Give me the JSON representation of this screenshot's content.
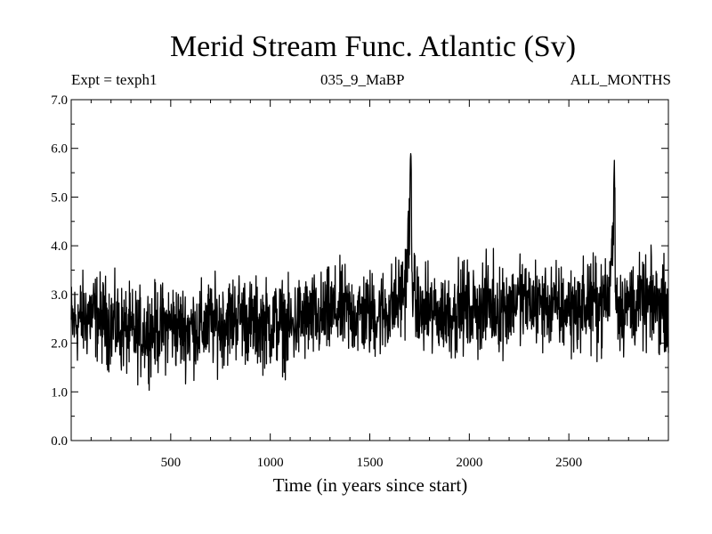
{
  "chart_data": {
    "type": "line",
    "title": "Merid Stream Func. Atlantic (Sv)",
    "left_label": "Expt = texph1",
    "center_label": "035_9_MaBP",
    "right_label": "ALL_MONTHS",
    "xlabel": "Time (in years since start)",
    "ylabel": "",
    "xlim": [
      0,
      3000
    ],
    "ylim": [
      0.0,
      7.0
    ],
    "x_ticks": [
      500,
      1000,
      1500,
      2000,
      2500
    ],
    "y_ticks": [
      "0.0",
      "1.0",
      "2.0",
      "3.0",
      "4.0",
      "5.0",
      "6.0",
      "7.0"
    ],
    "grid": false,
    "line_color": "#000000",
    "series": [
      {
        "x": [
          0,
          50,
          100,
          150,
          200,
          250,
          300,
          350,
          400,
          450,
          500,
          550,
          600,
          650,
          700,
          750,
          800,
          850,
          900,
          950,
          1000,
          1050,
          1100,
          1150,
          1200,
          1250,
          1300,
          1350,
          1400,
          1450,
          1500,
          1550,
          1600,
          1650,
          1680,
          1700,
          1720,
          1750,
          1800,
          1850,
          1900,
          1950,
          2000,
          2050,
          2100,
          2150,
          2200,
          2250,
          2300,
          2350,
          2400,
          2450,
          2500,
          2550,
          2600,
          2650,
          2700,
          2720,
          2740,
          2760,
          2800,
          2850,
          2900,
          2950,
          3000
        ],
        "values": [
          2.4,
          2.5,
          2.6,
          2.5,
          2.4,
          2.3,
          2.2,
          2.2,
          2.3,
          2.3,
          2.4,
          2.3,
          2.3,
          2.3,
          2.4,
          2.4,
          2.5,
          2.6,
          2.4,
          2.4,
          2.4,
          2.4,
          2.3,
          2.5,
          2.5,
          2.5,
          2.6,
          2.7,
          2.6,
          2.6,
          2.6,
          2.6,
          2.7,
          2.9,
          3.2,
          4.5,
          3.0,
          2.6,
          2.6,
          2.6,
          2.6,
          2.7,
          2.7,
          2.7,
          2.8,
          2.7,
          2.8,
          2.9,
          2.8,
          2.8,
          2.8,
          2.7,
          2.7,
          2.7,
          2.8,
          2.8,
          2.9,
          4.2,
          2.9,
          2.7,
          2.8,
          2.8,
          2.8,
          2.8,
          2.8
        ],
        "amplitude": 0.55,
        "max_at_spikes": [
          {
            "x": 1705,
            "y": 6.2
          },
          {
            "x": 2728,
            "y": 5.85
          }
        ]
      }
    ]
  }
}
